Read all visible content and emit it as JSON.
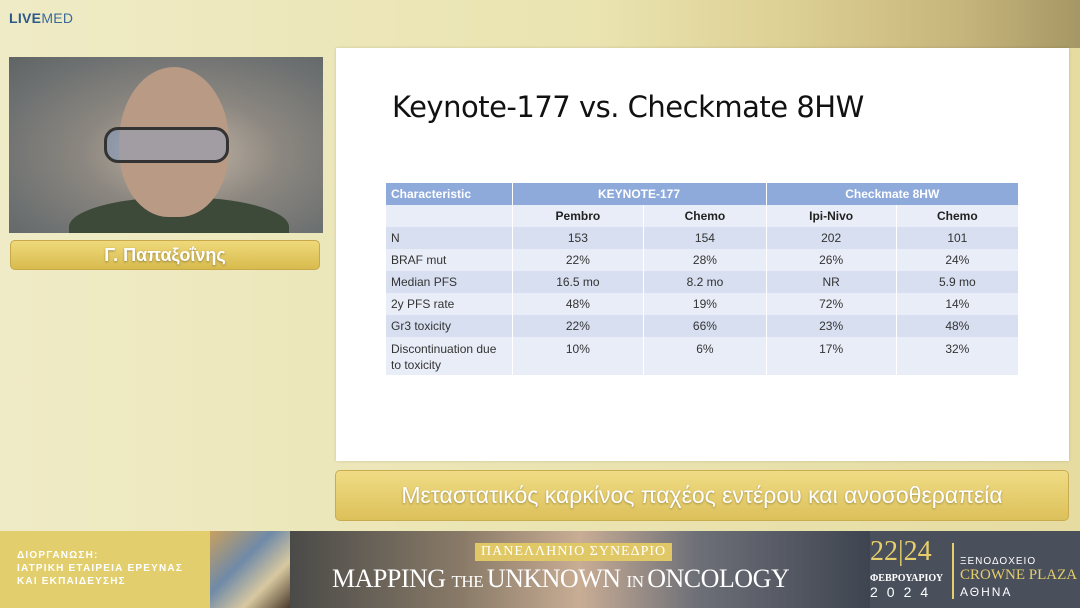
{
  "logo": {
    "bold": "LIVE",
    "rest": "MED"
  },
  "speaker": {
    "name": "Γ. Παπαξοΐνης"
  },
  "slide": {
    "title": "Keynote-177 vs. Checkmate 8HW",
    "table": {
      "header": [
        "Characteristic",
        "KEYNOTE-177",
        "Checkmate 8HW"
      ],
      "subheader": [
        "",
        "Pembro",
        "Chemo",
        "Ipi-Nivo",
        "Chemo"
      ],
      "rows": [
        [
          "N",
          "153",
          "154",
          "202",
          "101"
        ],
        [
          "BRAF mut",
          "22%",
          "28%",
          "26%",
          "24%"
        ],
        [
          "Median PFS",
          "16.5 mo",
          "8.2 mo",
          "NR",
          "5.9 mo"
        ],
        [
          "2y PFS rate",
          "48%",
          "19%",
          "72%",
          "14%"
        ],
        [
          "Gr3 toxicity",
          "22%",
          "66%",
          "23%",
          "48%"
        ],
        [
          "Discontinuation due to toxicity",
          "10%",
          "6%",
          "17%",
          "32%"
        ]
      ]
    }
  },
  "caption": "Μεταστατικός καρκίνος παχέος εντέρου και ανοσοθεραπεία",
  "banner": {
    "org_lines": [
      "ΔΙΟΡΓΑΝΩΣΗ:",
      "ΙΑΤΡΙΚΗ ΕΤΑΙΡΕΙΑ ΕΡΕΥΝΑΣ",
      "ΚΑΙ ΕΚΠΑΙΔΕΥΣΗΣ"
    ],
    "congress": "ΠΑΝΕΛΛΗΝΙΟ ΣΥΝΕΔΡΙΟ",
    "title_parts": [
      "MAPPING ",
      "THE ",
      "UNKNOWN ",
      "IN ",
      "ONCOLOGY"
    ],
    "dates": "22|24",
    "month": "ΦΕΒΡΟΥΑΡΙΟΥ",
    "year": "2024",
    "hotel_label": "ΞΕΝΟΔΟΧΕΙΟ",
    "hotel": "CROWNE PLAZA",
    "city": "ΑΘΗΝΑ"
  }
}
